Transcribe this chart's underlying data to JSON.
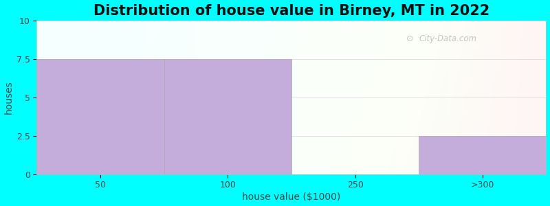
{
  "title": "Distribution of house value in Birney, MT in 2022",
  "xlabel": "house value ($1000)",
  "ylabel": "houses",
  "categories": [
    "50",
    "100",
    "250",
    ">300"
  ],
  "values": [
    7.5,
    7.5,
    0,
    2.5
  ],
  "bar_color": "#C4ADDA",
  "bar_edgecolor": "#AAAAAA",
  "ylim": [
    0,
    10
  ],
  "yticks": [
    0,
    2.5,
    5,
    7.5,
    10
  ],
  "background_outer": "#00FFFF",
  "watermark": "City-Data.com",
  "title_fontsize": 15,
  "axis_label_fontsize": 10,
  "bar_positions": [
    0,
    1,
    2,
    3
  ],
  "xlim": [
    -0.5,
    3.5
  ]
}
